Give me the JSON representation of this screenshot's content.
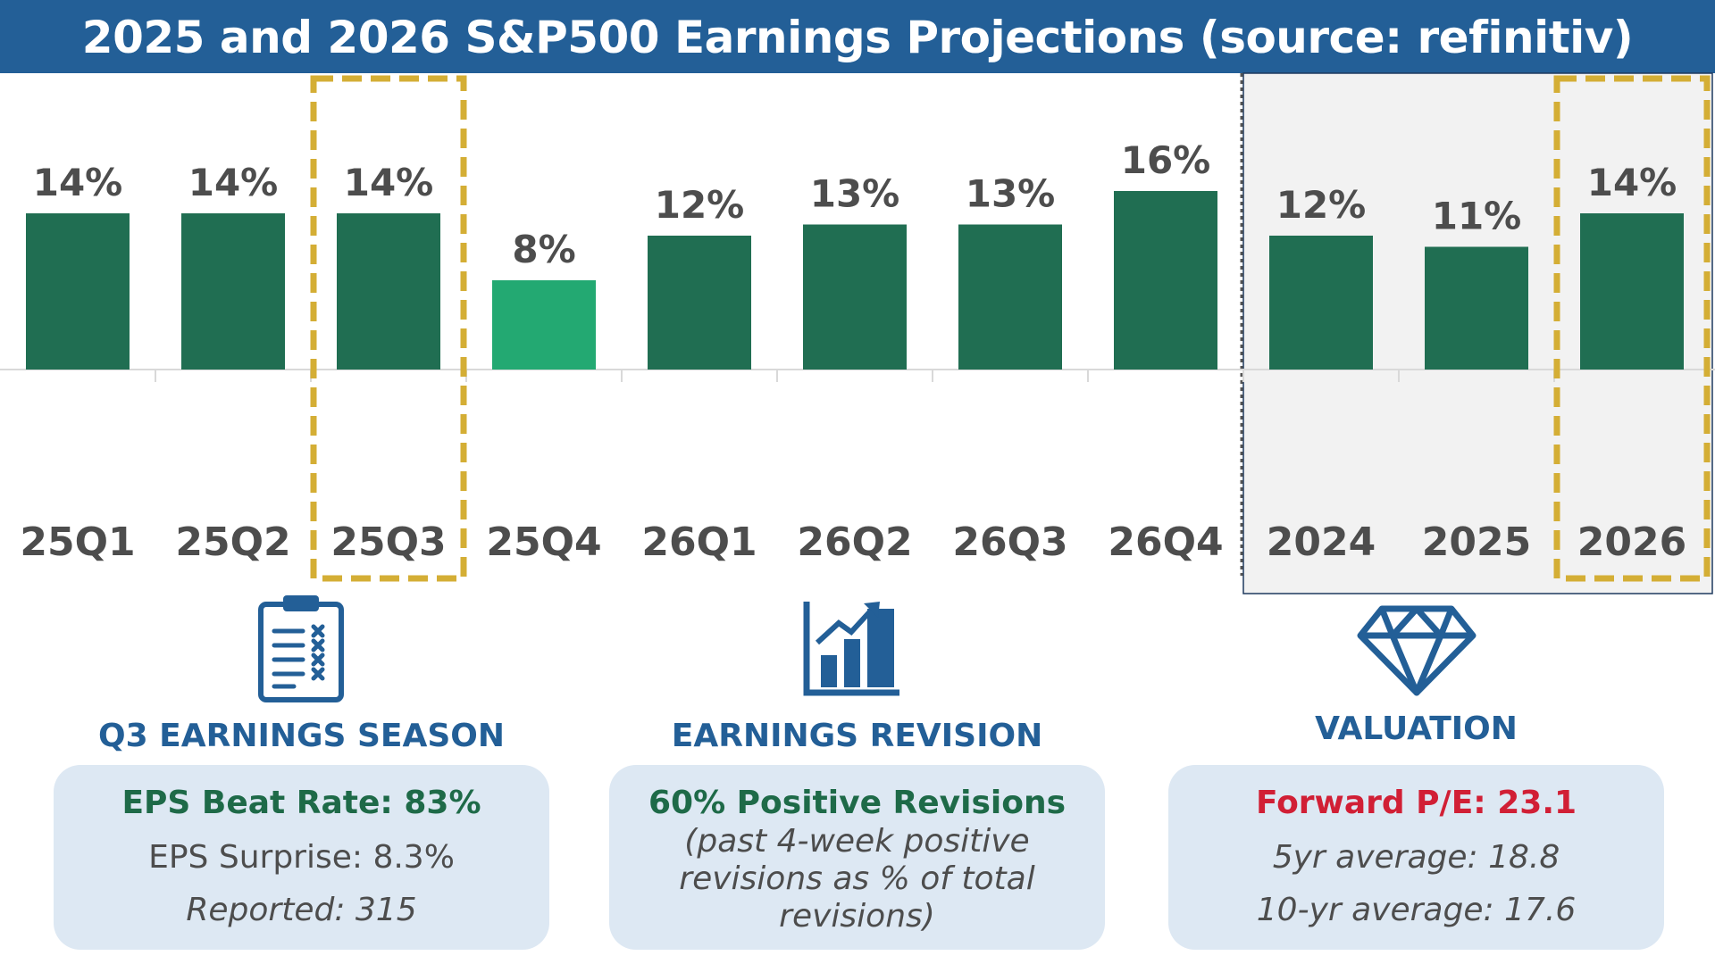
{
  "title": "2025 and 2026 S&P500 Earnings Projections (source: refinitiv)",
  "colors": {
    "header_bg": "#235f97",
    "bar_dark": "#206e52",
    "bar_light": "#23a972",
    "highlight_border": "#d4ae35",
    "label_text": "#4d4d4d",
    "card_bg": "#dde8f3",
    "accent_blue": "#235f97",
    "accent_green": "#1e6a48",
    "accent_red": "#d11f35"
  },
  "chart_data": {
    "type": "bar",
    "title": "2025 and 2026 S&P500 Earnings Projections (source: refinitiv)",
    "categories": [
      "25Q1",
      "25Q2",
      "25Q3",
      "25Q4",
      "26Q1",
      "26Q2",
      "26Q3",
      "26Q4",
      "2024",
      "2025",
      "2026"
    ],
    "values": [
      14,
      14,
      14,
      8,
      12,
      13,
      13,
      16,
      12,
      11,
      14
    ],
    "data_labels": [
      "14%",
      "14%",
      "14%",
      "8%",
      "12%",
      "13%",
      "13%",
      "16%",
      "12%",
      "11%",
      "14%"
    ],
    "ylabel": "",
    "xlabel": "",
    "ylim": [
      0,
      16
    ],
    "grid": false,
    "highlighted": [
      "25Q3",
      "2026"
    ],
    "light_bar": "25Q4",
    "annual_group": [
      "2024",
      "2025",
      "2026"
    ]
  },
  "cards": [
    {
      "title": "Q3 EARNINGS SEASON",
      "icon": "clipboard-checklist-icon",
      "headline": "EPS Beat Rate: 83%",
      "line1": "EPS Surprise: 8.3%",
      "line2": "Reported: 315"
    },
    {
      "title": "EARNINGS REVISION",
      "icon": "bar-chart-growth-icon",
      "headline": "60% Positive Revisions",
      "note": "(past 4-week positive revisions as % of total revisions)"
    },
    {
      "title": "VALUATION",
      "icon": "diamond-icon",
      "headline": "Forward P/E: 23.1",
      "line1": "5yr average: 18.8",
      "line2": "10-yr average: 17.6"
    }
  ]
}
